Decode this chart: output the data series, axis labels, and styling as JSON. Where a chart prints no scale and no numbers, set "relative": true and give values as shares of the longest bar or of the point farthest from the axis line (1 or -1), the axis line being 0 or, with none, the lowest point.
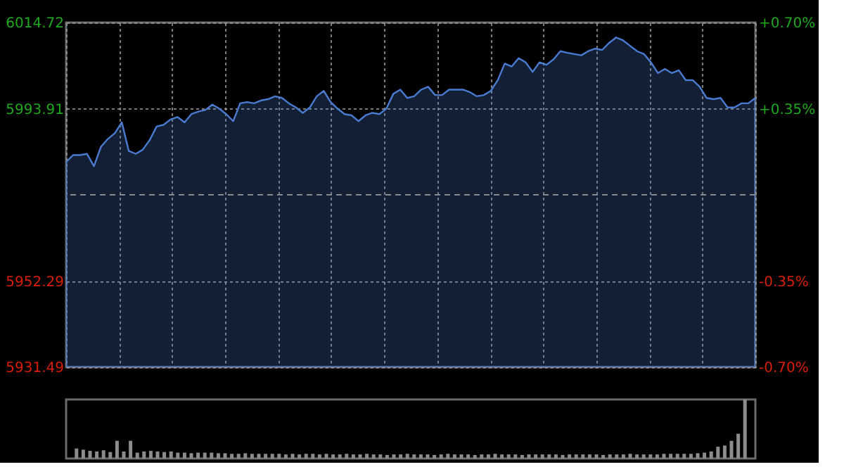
{
  "chart_data": [
    {
      "type": "area",
      "categories": [
        null,
        null,
        null,
        null,
        null,
        null,
        null,
        null,
        null,
        null,
        null,
        null,
        null,
        null,
        null,
        null,
        null,
        null,
        null,
        null,
        null,
        null,
        null,
        null,
        null,
        null,
        null,
        null,
        null,
        null,
        null,
        null,
        null,
        null,
        null,
        null,
        null,
        null,
        null,
        null,
        null,
        null,
        null,
        null,
        null,
        null,
        null,
        null,
        null,
        null,
        null,
        null,
        null,
        null,
        null,
        null,
        null,
        null,
        null,
        null,
        null,
        null,
        null,
        null,
        null,
        null,
        null,
        null,
        null,
        null,
        null,
        null,
        null,
        null,
        null,
        null,
        null,
        null,
        null,
        null,
        null,
        null,
        null,
        null,
        null,
        null,
        null,
        null,
        null,
        null,
        null,
        null,
        null,
        null,
        null,
        null,
        null,
        null,
        null,
        null
      ],
      "series": [
        {
          "color": "#4a7bd0",
          "values": [
            5981.0,
            5982.7,
            5982.7,
            5983.0,
            5980.0,
            5984.7,
            5986.6,
            5988.0,
            5990.6,
            5983.7,
            5983.0,
            5984.0,
            5986.3,
            5989.6,
            5990.0,
            5991.3,
            5991.9,
            5990.6,
            5992.6,
            5993.2,
            5993.6,
            5994.9,
            5993.9,
            5992.6,
            5990.9,
            5995.2,
            5995.5,
            5995.2,
            5995.9,
            5996.2,
            5996.9,
            5996.5,
            5995.2,
            5994.2,
            5992.9,
            5994.2,
            5996.9,
            5998.2,
            5995.5,
            5993.9,
            5992.6,
            5992.3,
            5990.9,
            5992.3,
            5992.9,
            5992.6,
            5993.9,
            5997.5,
            5998.5,
            5996.5,
            5996.9,
            5998.5,
            5999.2,
            5997.2,
            5997.2,
            5998.5,
            5998.5,
            5998.5,
            5997.9,
            5996.9,
            5997.2,
            5998.2,
            6000.8,
            6004.8,
            6004.1,
            6006.1,
            6005.1,
            6002.8,
            6005.1,
            6004.5,
            6005.8,
            6007.8,
            6007.4,
            6007.1,
            6006.8,
            6007.8,
            6008.4,
            6008.1,
            6009.8,
            6011.1,
            6010.4,
            6009.1,
            6007.8,
            6007.1,
            6005.1,
            6002.5,
            6003.5,
            6002.5,
            6003.2,
            6000.8,
            6000.8,
            5999.2,
            5996.5,
            5996.2,
            5996.5,
            5994.2,
            5994.2,
            5995.2,
            5995.2,
            5996.5
          ]
        }
      ],
      "ylim": [
        5931.49,
        6014.72
      ],
      "yticks": [
        5931.49,
        5952.29,
        5993.91,
        6014.72
      ],
      "y2lim": [
        -0.7,
        0.7
      ],
      "y2ticks": [
        {
          "value": -0.7,
          "label": "-0.70%"
        },
        {
          "value": -0.35,
          "label": "-0.35%"
        },
        {
          "value": 0.35,
          "label": "+0.35%"
        },
        {
          "value": 0.7,
          "label": "+0.70%"
        }
      ],
      "ref_lines": [
        {
          "axis": "y",
          "value": 5973.1,
          "line_style": "dashed",
          "color": "#8a8a8a"
        }
      ],
      "grid": true,
      "tick_labels": "y"
    },
    {
      "type": "bar",
      "relative": true,
      "categories": [
        null,
        null,
        null,
        null,
        null,
        null,
        null,
        null,
        null,
        null,
        null,
        null,
        null,
        null,
        null,
        null,
        null,
        null,
        null,
        null,
        null,
        null,
        null,
        null,
        null,
        null,
        null,
        null,
        null,
        null,
        null,
        null,
        null,
        null,
        null,
        null,
        null,
        null,
        null,
        null,
        null,
        null,
        null,
        null,
        null,
        null,
        null,
        null,
        null,
        null,
        null,
        null,
        null,
        null,
        null,
        null,
        null,
        null,
        null,
        null,
        null,
        null,
        null,
        null,
        null,
        null,
        null,
        null,
        null,
        null,
        null,
        null,
        null,
        null,
        null,
        null,
        null,
        null,
        null,
        null,
        null,
        null,
        null,
        null,
        null,
        null,
        null,
        null,
        null,
        null,
        null,
        null,
        null,
        null,
        null,
        null,
        null,
        null,
        null,
        null
      ],
      "values": [
        0.17,
        0.15,
        0.13,
        0.12,
        0.14,
        0.11,
        0.3,
        0.12,
        0.3,
        0.1,
        0.12,
        0.13,
        0.12,
        0.11,
        0.12,
        0.1,
        0.1,
        0.09,
        0.1,
        0.1,
        0.1,
        0.09,
        0.09,
        0.08,
        0.08,
        0.09,
        0.08,
        0.08,
        0.08,
        0.08,
        0.08,
        0.07,
        0.08,
        0.07,
        0.08,
        0.08,
        0.07,
        0.08,
        0.07,
        0.07,
        0.08,
        0.07,
        0.07,
        0.08,
        0.07,
        0.07,
        0.06,
        0.07,
        0.07,
        0.08,
        0.07,
        0.07,
        0.07,
        0.06,
        0.07,
        0.08,
        0.07,
        0.07,
        0.07,
        0.06,
        0.07,
        0.07,
        0.08,
        0.07,
        0.07,
        0.07,
        0.06,
        0.07,
        0.07,
        0.07,
        0.07,
        0.07,
        0.06,
        0.07,
        0.07,
        0.07,
        0.07,
        0.07,
        0.06,
        0.07,
        0.07,
        0.07,
        0.08,
        0.07,
        0.07,
        0.07,
        0.07,
        0.08,
        0.08,
        0.08,
        0.08,
        0.08,
        0.09,
        0.1,
        0.12,
        0.2,
        0.22,
        0.3,
        0.42,
        1.0
      ],
      "color": "#8c8c8c"
    }
  ]
}
